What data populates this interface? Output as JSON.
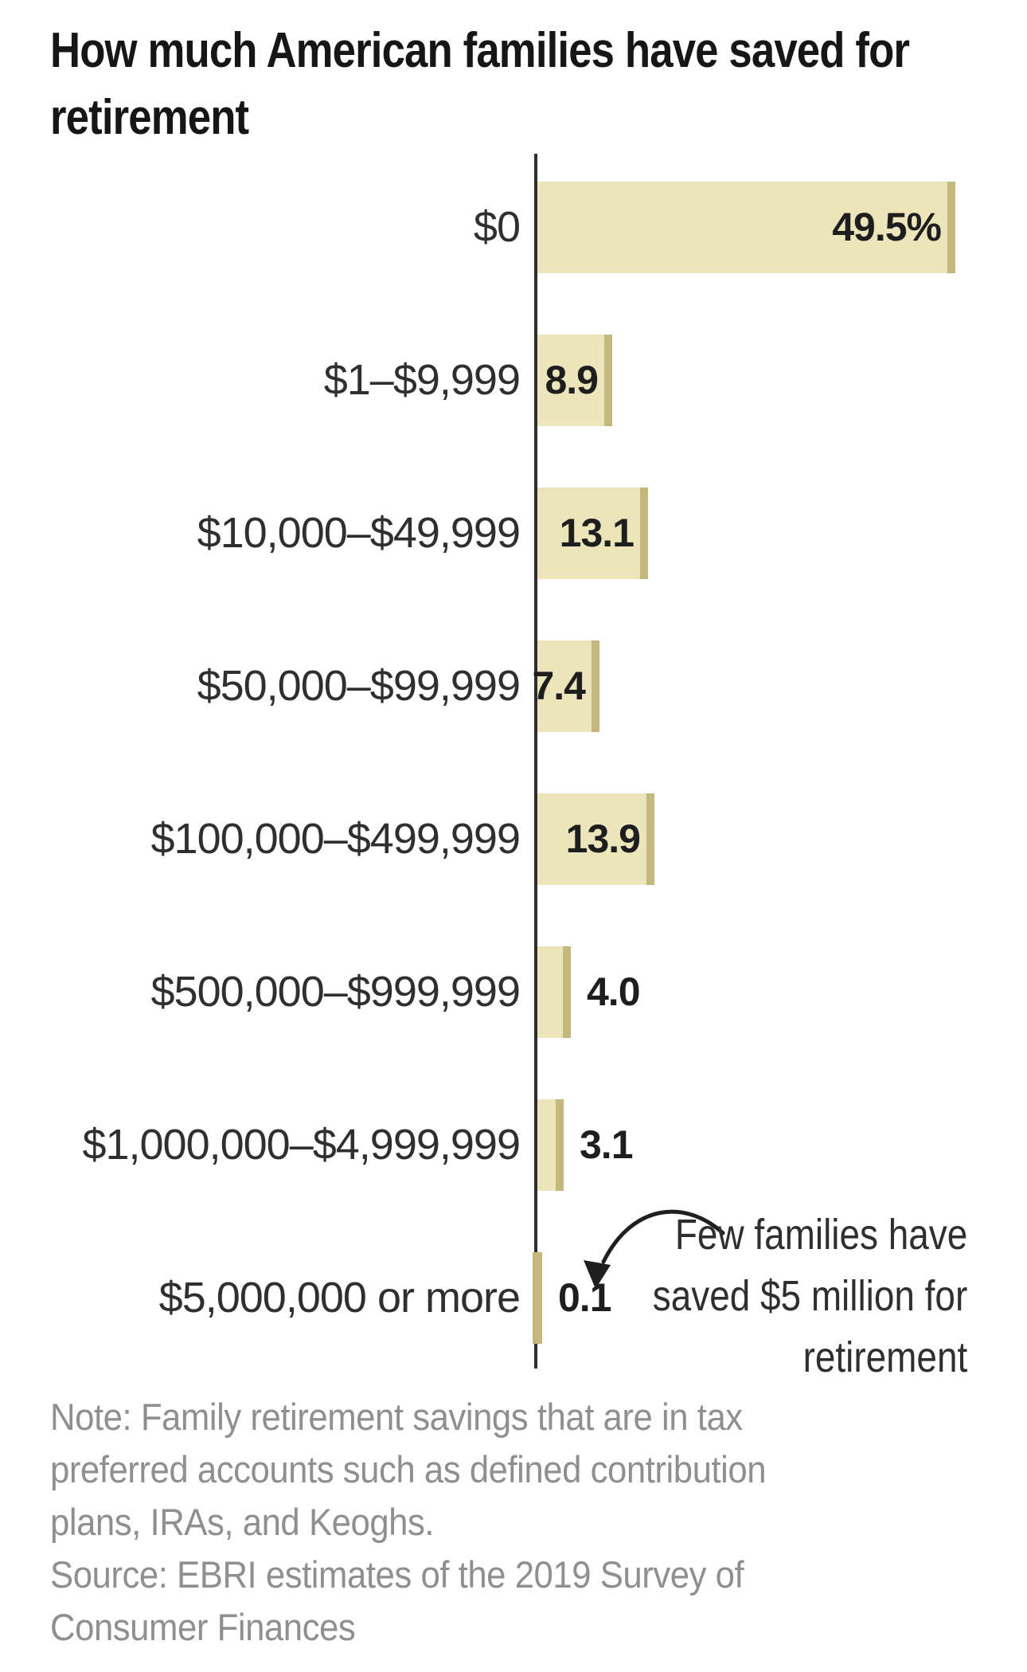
{
  "header": {
    "title_lines": [
      "How much American families have saved for",
      "retirement"
    ],
    "title_full": "How much American families have saved for retirement"
  },
  "chart_data": {
    "type": "bar",
    "orientation": "horizontal",
    "title": "How much American families have saved for retirement",
    "categories": [
      "$0",
      "$1–$9,999",
      "$10,000–$49,999",
      "$50,000–$99,999",
      "$100,000–$499,999",
      "$500,000–$999,999",
      "$1,000,000–$4,999,999",
      "$5,000,000 or more"
    ],
    "values": [
      49.5,
      8.9,
      13.1,
      7.4,
      13.9,
      4.0,
      3.1,
      0.1
    ],
    "display_values": [
      "49.5%",
      "8.9",
      "13.1",
      "7.4",
      "13.9",
      "4.0",
      "3.1",
      "0.1"
    ],
    "unit": "percent of families",
    "xlim": [
      0,
      58
    ],
    "grid": false,
    "legend": false,
    "label_inside": [
      true,
      true,
      true,
      true,
      true,
      false,
      false,
      false
    ],
    "bar_fill": "#ECE4BA",
    "bar_cap": "#C4B87C",
    "axis_color": "#2D2D2D",
    "annotation": {
      "lines": [
        "Few families have",
        "saved $5 million for",
        "retirement"
      ],
      "text_full": "Few families have saved $5 million for retirement",
      "points_to": "$5,000,000 or more"
    }
  },
  "footer": {
    "note_lines": [
      "Note: Family retirement savings that are in tax",
      "preferred accounts such as defined contribution",
      "plans, IRAs, and Keoghs."
    ],
    "source_lines": [
      "Source: EBRI estimates of the 2019 Survey of",
      "Consumer Finances"
    ]
  }
}
